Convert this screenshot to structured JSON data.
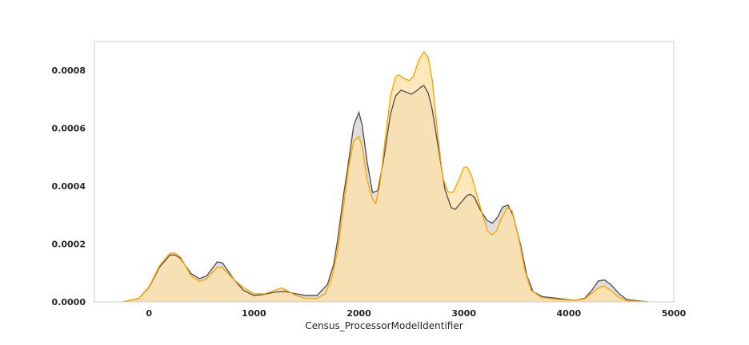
{
  "chart_data": {
    "type": "area",
    "title": "",
    "xlabel": "Census_ProcessorModelIdentifier",
    "ylabel": "",
    "xlim": [
      -520,
      5000
    ],
    "ylim": [
      0,
      0.0009
    ],
    "grid": false,
    "legend": "none",
    "x_ticks": [
      0,
      1000,
      2000,
      3000,
      4000,
      5000
    ],
    "y_ticks": [
      0,
      0.0002,
      0.0004,
      0.0006,
      0.0008
    ],
    "x_tick_labels": [
      "0",
      "1000",
      "2000",
      "3000",
      "4000",
      "5000"
    ],
    "y_tick_labels": [
      "0.0000",
      "0.0002",
      "0.0004",
      "0.0006",
      "0.0008"
    ],
    "series": [
      {
        "color": "#555555",
        "fill": "#d3d3d3",
        "points": [
          [
            -250,
            0
          ],
          [
            -100,
            1.2e-05
          ],
          [
            0,
            5e-05
          ],
          [
            100,
            0.00012
          ],
          [
            200,
            0.000162
          ],
          [
            250,
            0.000162
          ],
          [
            300,
            0.00015
          ],
          [
            400,
            9.8e-05
          ],
          [
            480,
            8e-05
          ],
          [
            550,
            9e-05
          ],
          [
            650,
            0.000138
          ],
          [
            700,
            0.000135
          ],
          [
            800,
            8.2e-05
          ],
          [
            900,
            4e-05
          ],
          [
            1000,
            2.2e-05
          ],
          [
            1100,
            2.6e-05
          ],
          [
            1200,
            3.4e-05
          ],
          [
            1300,
            3.6e-05
          ],
          [
            1400,
            2.8e-05
          ],
          [
            1500,
            2.2e-05
          ],
          [
            1600,
            2.2e-05
          ],
          [
            1700,
            6e-05
          ],
          [
            1760,
            0.00013
          ],
          [
            1800,
            0.00022
          ],
          [
            1850,
            0.00036
          ],
          [
            1900,
            0.00048
          ],
          [
            1950,
            0.00061
          ],
          [
            2000,
            0.000655
          ],
          [
            2030,
            0.000612
          ],
          [
            2080,
            0.00048
          ],
          [
            2130,
            0.000378
          ],
          [
            2180,
            0.000385
          ],
          [
            2230,
            0.00048
          ],
          [
            2300,
            0.000648
          ],
          [
            2350,
            0.000712
          ],
          [
            2400,
            0.000732
          ],
          [
            2450,
            0.000725
          ],
          [
            2500,
            0.000718
          ],
          [
            2550,
            0.00073
          ],
          [
            2600,
            0.000745
          ],
          [
            2620,
            0.000748
          ],
          [
            2660,
            0.000722
          ],
          [
            2700,
            0.000662
          ],
          [
            2780,
            0.00048
          ],
          [
            2820,
            0.000388
          ],
          [
            2880,
            0.000325
          ],
          [
            2920,
            0.00032
          ],
          [
            2960,
            0.000338
          ],
          [
            3030,
            0.000368
          ],
          [
            3060,
            0.000372
          ],
          [
            3100,
            0.000362
          ],
          [
            3150,
            0.000322
          ],
          [
            3220,
            0.000282
          ],
          [
            3270,
            0.000272
          ],
          [
            3320,
            0.000292
          ],
          [
            3370,
            0.000328
          ],
          [
            3420,
            0.000335
          ],
          [
            3470,
            0.000298
          ],
          [
            3540,
            0.000198
          ],
          [
            3600,
            9e-05
          ],
          [
            3660,
            3.5e-05
          ],
          [
            3750,
            1.8e-05
          ],
          [
            3900,
            1.2e-05
          ],
          [
            4050,
            5e-06
          ],
          [
            4150,
            1.2e-05
          ],
          [
            4220,
            4e-05
          ],
          [
            4280,
            7.2e-05
          ],
          [
            4340,
            7.6e-05
          ],
          [
            4400,
            6e-05
          ],
          [
            4480,
            2.8e-05
          ],
          [
            4550,
            8e-06
          ],
          [
            4750,
            0
          ]
        ]
      },
      {
        "color": "#ffa500",
        "fill": "#ffe0a6",
        "points": [
          [
            -250,
            0
          ],
          [
            -100,
            1.2e-05
          ],
          [
            0,
            5.2e-05
          ],
          [
            100,
            0.000125
          ],
          [
            200,
            0.000168
          ],
          [
            250,
            0.000168
          ],
          [
            300,
            0.000155
          ],
          [
            400,
            9e-05
          ],
          [
            480,
            7e-05
          ],
          [
            550,
            8e-05
          ],
          [
            650,
            0.00012
          ],
          [
            700,
            0.000118
          ],
          [
            800,
            8e-05
          ],
          [
            900,
            5e-05
          ],
          [
            1000,
            2.8e-05
          ],
          [
            1100,
            2.8e-05
          ],
          [
            1200,
            4e-05
          ],
          [
            1260,
            4.8e-05
          ],
          [
            1300,
            4.2e-05
          ],
          [
            1400,
            2.2e-05
          ],
          [
            1500,
            1.2e-05
          ],
          [
            1600,
            1.2e-05
          ],
          [
            1680,
            2.8e-05
          ],
          [
            1740,
            8e-05
          ],
          [
            1800,
            0.00018
          ],
          [
            1850,
            0.00032
          ],
          [
            1900,
            0.00046
          ],
          [
            1950,
            0.000555
          ],
          [
            2000,
            0.000572
          ],
          [
            2030,
            0.000538
          ],
          [
            2080,
            0.00042
          ],
          [
            2130,
            0.000355
          ],
          [
            2160,
            0.00034
          ],
          [
            2200,
            0.000405
          ],
          [
            2250,
            0.00056
          ],
          [
            2300,
            0.00071
          ],
          [
            2350,
            0.000778
          ],
          [
            2380,
            0.000785
          ],
          [
            2430,
            0.000772
          ],
          [
            2480,
            0.000765
          ],
          [
            2520,
            0.00078
          ],
          [
            2570,
            0.000835
          ],
          [
            2620,
            0.000865
          ],
          [
            2660,
            0.000845
          ],
          [
            2700,
            0.000765
          ],
          [
            2750,
            0.00058
          ],
          [
            2800,
            0.00043
          ],
          [
            2850,
            0.00038
          ],
          [
            2900,
            0.00038
          ],
          [
            2950,
            0.00042
          ],
          [
            3000,
            0.000465
          ],
          [
            3030,
            0.000466
          ],
          [
            3070,
            0.00044
          ],
          [
            3120,
            0.000375
          ],
          [
            3180,
            0.000298
          ],
          [
            3230,
            0.000242
          ],
          [
            3270,
            0.000232
          ],
          [
            3310,
            0.000245
          ],
          [
            3360,
            0.00029
          ],
          [
            3410,
            0.000325
          ],
          [
            3460,
            0.000315
          ],
          [
            3520,
            0.000225
          ],
          [
            3580,
            0.00011
          ],
          [
            3640,
            4e-05
          ],
          [
            3740,
            1.5e-05
          ],
          [
            3900,
            8e-06
          ],
          [
            4050,
            5e-06
          ],
          [
            4150,
            1e-05
          ],
          [
            4220,
            3e-05
          ],
          [
            4300,
            5.2e-05
          ],
          [
            4340,
            5.4e-05
          ],
          [
            4400,
            4e-05
          ],
          [
            4480,
            1.5e-05
          ],
          [
            4550,
            4e-06
          ],
          [
            4750,
            0
          ]
        ]
      }
    ]
  }
}
